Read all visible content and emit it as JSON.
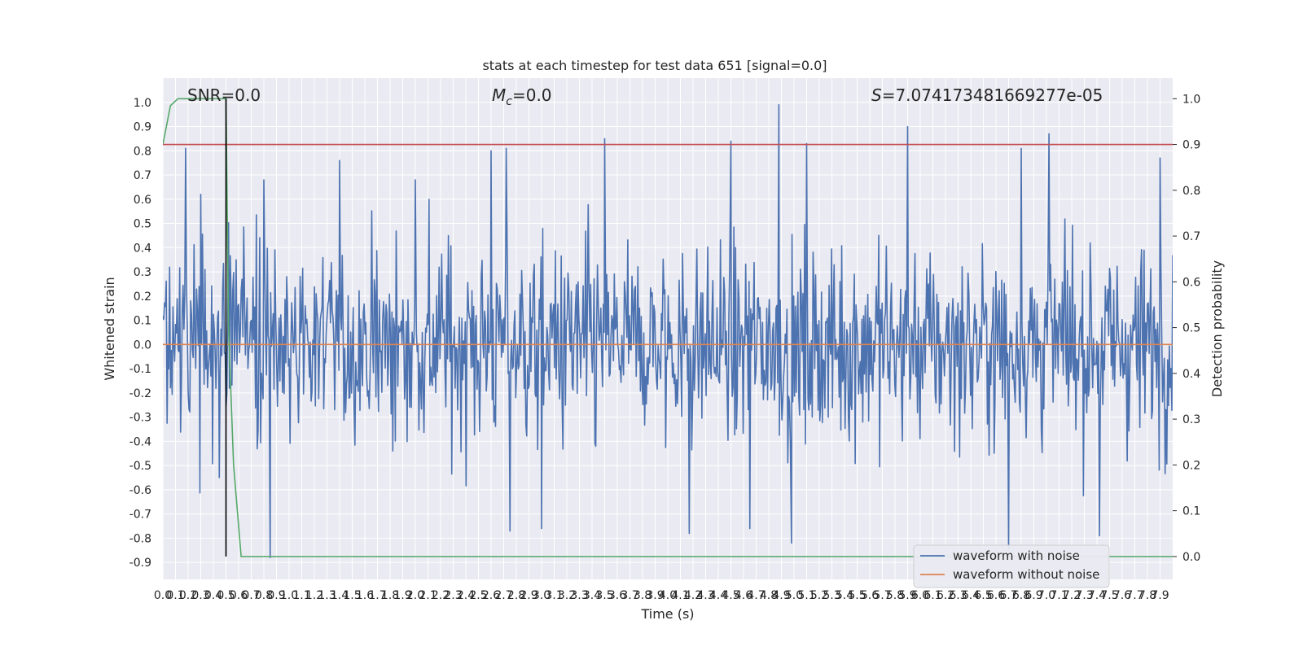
{
  "chart_data": {
    "type": "line",
    "title": "stats at each timestep for test data 651 [signal=0.0]",
    "xlabel": "Time (s)",
    "ylabel": "Whitened strain",
    "ylabel_right": "Detection probability",
    "xlim": [
      0.0,
      8.0
    ],
    "ylim": [
      -0.97,
      1.1
    ],
    "ylim_right": [
      -0.05,
      1.045
    ],
    "x_ticks": [
      0.0,
      0.1,
      0.2,
      0.3,
      0.4,
      0.5,
      0.6,
      0.7,
      0.8,
      0.9,
      1.0,
      1.1,
      1.2,
      1.3,
      1.4,
      1.5,
      1.6,
      1.7,
      1.8,
      1.9,
      2.0,
      2.1,
      2.2,
      2.3,
      2.4,
      2.5,
      2.6,
      2.7,
      2.8,
      2.9,
      3.0,
      3.1,
      3.2,
      3.3,
      3.4,
      3.5,
      3.6,
      3.7,
      3.8,
      3.9,
      4.0,
      4.1,
      4.2,
      4.3,
      4.4,
      4.5,
      4.6,
      4.7,
      4.8,
      4.9,
      5.0,
      5.1,
      5.2,
      5.3,
      5.4,
      5.5,
      5.6,
      5.7,
      5.8,
      5.9,
      6.0,
      6.1,
      6.2,
      6.3,
      6.4,
      6.5,
      6.6,
      6.7,
      6.8,
      6.9,
      7.0,
      7.1,
      7.2,
      7.3,
      7.4,
      7.5,
      7.6,
      7.7,
      7.8,
      7.9
    ],
    "x_tick_labels": [
      "0.0",
      "0.1",
      "0.2",
      "0.3",
      "0.4",
      "0.5",
      "0.6",
      "0.7",
      "0.8",
      "0.9",
      "1.0",
      "1.1",
      "1.2",
      "1.3",
      "1.4",
      "1.5",
      "1.6",
      "1.7",
      "1.8",
      "1.9",
      "2.0",
      "2.1",
      "2.2",
      "2.3",
      "2.4",
      "2.5",
      "2.6",
      "2.7",
      "2.8",
      "2.9",
      "3.0",
      "3.1",
      "3.2",
      "3.3",
      "3.4",
      "3.5",
      "3.6",
      "3.7",
      "3.8",
      "3.9",
      "4.0",
      "4.1",
      "4.2",
      "4.3",
      "4.4",
      "4.5",
      "4.6",
      "4.7",
      "4.8",
      "4.9",
      "5.0",
      "5.1",
      "5.2",
      "5.3",
      "5.4",
      "5.5",
      "5.6",
      "5.7",
      "5.8",
      "5.9",
      "6.0",
      "6.1",
      "6.2",
      "6.3",
      "6.4",
      "6.5",
      "6.6",
      "6.7",
      "6.8",
      "6.9",
      "7.0",
      "7.1",
      "7.2",
      "7.3",
      "7.4",
      "7.5",
      "7.6",
      "7.7",
      "7.8",
      "7.9"
    ],
    "y_ticks": [
      1.0,
      0.9,
      0.8,
      0.7,
      0.6,
      0.5,
      0.4,
      0.3,
      0.2,
      0.1,
      0.0,
      -0.1,
      -0.2,
      -0.3,
      -0.4,
      -0.5,
      -0.6,
      -0.7,
      -0.8,
      -0.9
    ],
    "y_tick_labels": [
      "1.0",
      "0.9",
      "0.8",
      "0.7",
      "0.6",
      "0.5",
      "0.4",
      "0.3",
      "0.2",
      "0.1",
      "0.0",
      "-0.1",
      "-0.2",
      "-0.3",
      "-0.4",
      "-0.5",
      "-0.6",
      "-0.7",
      "-0.8",
      "-0.9"
    ],
    "y_right_ticks": [
      1.0,
      0.9,
      0.8,
      0.7,
      0.6,
      0.5,
      0.4,
      0.3,
      0.2,
      0.1,
      0.0
    ],
    "y_right_tick_labels": [
      "1.0",
      "0.9",
      "0.8",
      "0.7",
      "0.6",
      "0.5",
      "0.4",
      "0.3",
      "0.2",
      "0.1",
      "0.0"
    ],
    "grid": true,
    "background": "#eaeaf2",
    "annotations": {
      "snr": "SNR=0.0",
      "mc_symbol": "M",
      "mc_sub": "c",
      "mc_value": "=0.0",
      "s_symbol": "S",
      "s_value": "=7.074173481669277e-05"
    },
    "legend": {
      "position": "lower-right",
      "entries": [
        "waveform with noise",
        "waveform without noise"
      ]
    },
    "series": [
      {
        "name": "waveform with noise",
        "axis": "left",
        "color": "#4c72b0",
        "kind": "noise",
        "n_samples": 1200,
        "peaks": [
          {
            "x": 0.18,
            "y": 0.81
          },
          {
            "x": 0.3,
            "y": 0.62
          },
          {
            "x": 0.8,
            "y": 0.68
          },
          {
            "x": 1.4,
            "y": 0.76
          },
          {
            "x": 2.0,
            "y": 0.68
          },
          {
            "x": 2.6,
            "y": 0.8
          },
          {
            "x": 2.72,
            "y": 0.81
          },
          {
            "x": 3.5,
            "y": 0.85
          },
          {
            "x": 4.5,
            "y": 0.84
          },
          {
            "x": 4.88,
            "y": 0.99
          },
          {
            "x": 5.1,
            "y": 0.83
          },
          {
            "x": 5.9,
            "y": 0.9
          },
          {
            "x": 6.8,
            "y": 0.81
          },
          {
            "x": 7.02,
            "y": 0.87
          },
          {
            "x": 7.9,
            "y": 0.77
          },
          {
            "x": 0.85,
            "y": -0.88
          },
          {
            "x": 4.98,
            "y": -0.82
          },
          {
            "x": 6.7,
            "y": -0.85
          },
          {
            "x": 2.75,
            "y": -0.77
          },
          {
            "x": 7.42,
            "y": -0.79
          },
          {
            "x": 3.0,
            "y": -0.76
          },
          {
            "x": 4.17,
            "y": -0.78
          },
          {
            "x": 4.65,
            "y": -0.76
          }
        ]
      },
      {
        "name": "waveform without noise",
        "axis": "left",
        "color": "#dd8452",
        "x": [
          0.0,
          8.0
        ],
        "y": [
          0.0,
          0.0
        ]
      },
      {
        "axis": "right",
        "color": "#55a868",
        "x": [
          0.0,
          0.06,
          0.12,
          0.2,
          0.3,
          0.4,
          0.5,
          0.52,
          0.56,
          0.62,
          0.8,
          8.0
        ],
        "y": [
          0.9,
          0.985,
          1.0,
          1.0,
          1.0,
          1.0,
          1.0,
          0.5,
          0.2,
          0.0,
          0.0,
          0.0
        ]
      },
      {
        "axis": "right",
        "color": "#c44e52",
        "x": [
          0.0,
          8.0
        ],
        "y": [
          0.9,
          0.9
        ]
      },
      {
        "axis": "right",
        "color": "#000000",
        "x": [
          0.5,
          0.5
        ],
        "y": [
          0.0,
          1.0
        ]
      }
    ]
  }
}
